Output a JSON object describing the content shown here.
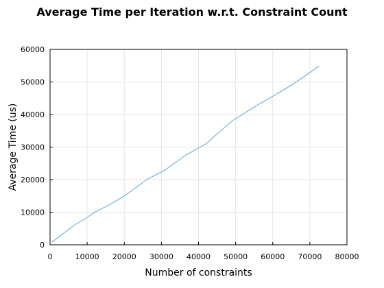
{
  "chart_data": {
    "type": "line",
    "title": "Average Time per Iteration w.r.t. Constraint Count",
    "xlabel": "Number of constraints",
    "ylabel": "Average Time (us)",
    "xlim": [
      0,
      80000
    ],
    "ylim": [
      0,
      60000
    ],
    "x_ticks": [
      0,
      10000,
      20000,
      30000,
      40000,
      50000,
      60000,
      70000,
      80000
    ],
    "y_ticks": [
      0,
      10000,
      20000,
      30000,
      40000,
      50000,
      60000
    ],
    "x_tick_labels": [
      "0",
      "10000",
      "20000",
      "30000",
      "40000",
      "50000",
      "60000",
      "70000",
      "80000"
    ],
    "y_tick_labels": [
      "0",
      "10000",
      "20000",
      "30000",
      "40000",
      "50000",
      "60000"
    ],
    "grid": true,
    "legend": "none",
    "series": [
      {
        "color": "#5aa3d6",
        "points": [
          [
            500,
            800
          ],
          [
            3000,
            3000
          ],
          [
            6500,
            6000
          ],
          [
            9500,
            8000
          ],
          [
            12000,
            10000
          ],
          [
            16000,
            12300
          ],
          [
            20000,
            15000
          ],
          [
            24000,
            18300
          ],
          [
            26000,
            20000
          ],
          [
            31000,
            23000
          ],
          [
            36500,
            27500
          ],
          [
            42000,
            31000
          ],
          [
            45500,
            34500
          ],
          [
            49000,
            38000
          ],
          [
            56000,
            43000
          ],
          [
            60000,
            45600
          ],
          [
            64000,
            48300
          ],
          [
            68000,
            51300
          ],
          [
            72500,
            54900
          ]
        ]
      }
    ]
  }
}
